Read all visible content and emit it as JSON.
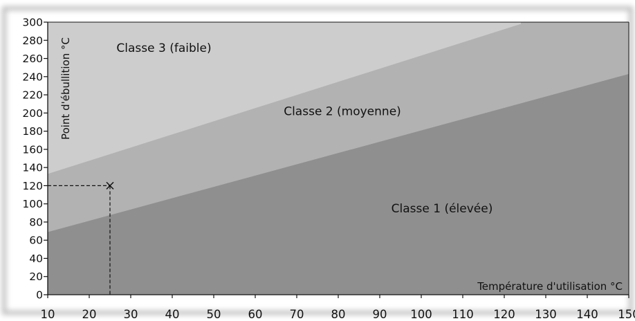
{
  "colors": {
    "zone_low": "#8f8f8f",
    "zone_mid": "#b2b2b2",
    "zone_high": "#cdcdcd",
    "axis": "#111111",
    "frame_shadow": "#bdbdbd"
  },
  "chart_data": {
    "type": "area",
    "xlabel": "Température d'utilisation °C",
    "ylabel": "Point d'ébullition °C",
    "xlim": [
      10,
      150
    ],
    "ylim": [
      0,
      300
    ],
    "x_ticks": [
      10,
      20,
      30,
      40,
      50,
      60,
      70,
      80,
      90,
      100,
      110,
      120,
      130,
      140,
      150
    ],
    "y_ticks": [
      0,
      20,
      40,
      60,
      80,
      100,
      120,
      140,
      160,
      180,
      200,
      220,
      240,
      260,
      280,
      300
    ],
    "grid": false,
    "boundaries": [
      {
        "x": [
          10,
          150
        ],
        "y": [
          69,
          243
        ]
      },
      {
        "x": [
          10,
          124
        ],
        "y": [
          133,
          298
        ]
      }
    ],
    "zones": [
      {
        "name": "Classe 1 (élevée)",
        "label_x": 105,
        "label_y": 95
      },
      {
        "name": "Classe 2 (moyenne)",
        "label_x": 81,
        "label_y": 202
      },
      {
        "name": "Classe 3 (faible)",
        "label_x": 38,
        "label_y": 272
      }
    ],
    "marker": {
      "x": 25,
      "y": 120
    }
  }
}
